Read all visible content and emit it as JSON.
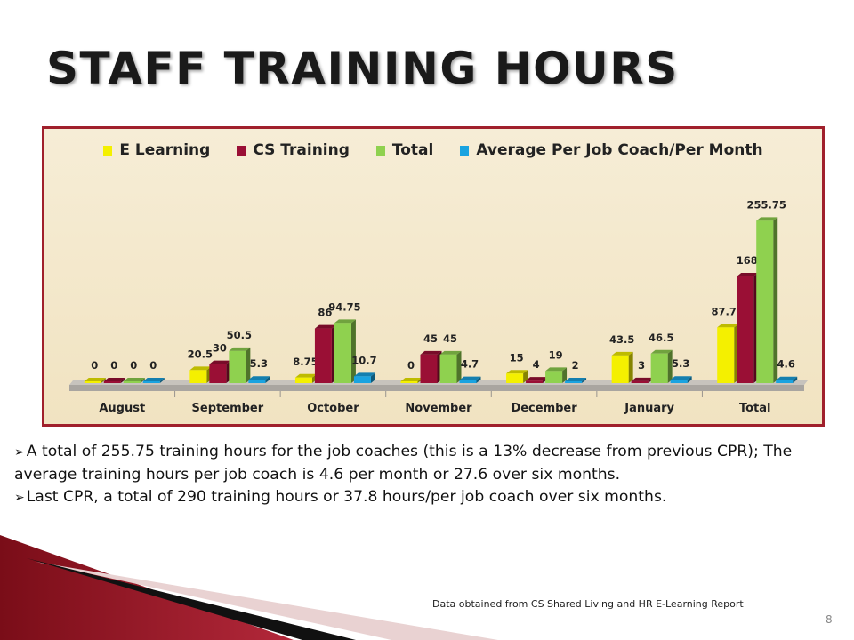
{
  "slide": {
    "title": "STAFF TRAINING HOURS",
    "bullets": [
      "A total of 255.75 training hours for the job coaches (this is a 13% decrease from previous CPR); The average training hours per job coach is 4.6 per month or 27.6 over six months.",
      "Last CPR, a total of 290  training hours or 37.8 hours/per job coach over six months."
    ],
    "source": "Data obtained from CS Shared Living and HR E-Learning Report",
    "page_number": "8",
    "colors": {
      "frame": "#a0202c",
      "accent": "#8b1a26"
    }
  },
  "chart_data": {
    "type": "bar",
    "categories": [
      "August",
      "September",
      "October",
      "November",
      "December",
      "January",
      "Total"
    ],
    "series": [
      {
        "name": "E Learning",
        "color": "#f4f000",
        "values": [
          0,
          20.5,
          8.75,
          0,
          15,
          43.5,
          87.75
        ],
        "labels": [
          "0",
          "20.5",
          "8.75",
          "0",
          "15",
          "43.5",
          "87.75"
        ]
      },
      {
        "name": "CS Training",
        "color": "#9a0f35",
        "values": [
          0,
          30,
          86,
          45,
          4,
          3,
          168
        ],
        "labels": [
          "0",
          "30",
          "86",
          "45",
          "4",
          "3",
          "168"
        ]
      },
      {
        "name": "Total",
        "color": "#8fd14f",
        "values": [
          0,
          50.5,
          94.75,
          45,
          19,
          46.5,
          255.75
        ],
        "labels": [
          "0",
          "50.5",
          "94.75",
          "45",
          "19",
          "46.5",
          "255.75"
        ]
      },
      {
        "name": "Average Per Job Coach/Per Month",
        "color": "#1aa3e0",
        "values": [
          0,
          5.3,
          10.7,
          4.7,
          2,
          5.3,
          4.6
        ],
        "labels": [
          "0",
          "5.3",
          "10.7",
          "4.7",
          "2",
          "5.3",
          "4.6"
        ]
      }
    ],
    "ylim": [
      0,
      280
    ],
    "legend_position": "top",
    "grid": false
  }
}
